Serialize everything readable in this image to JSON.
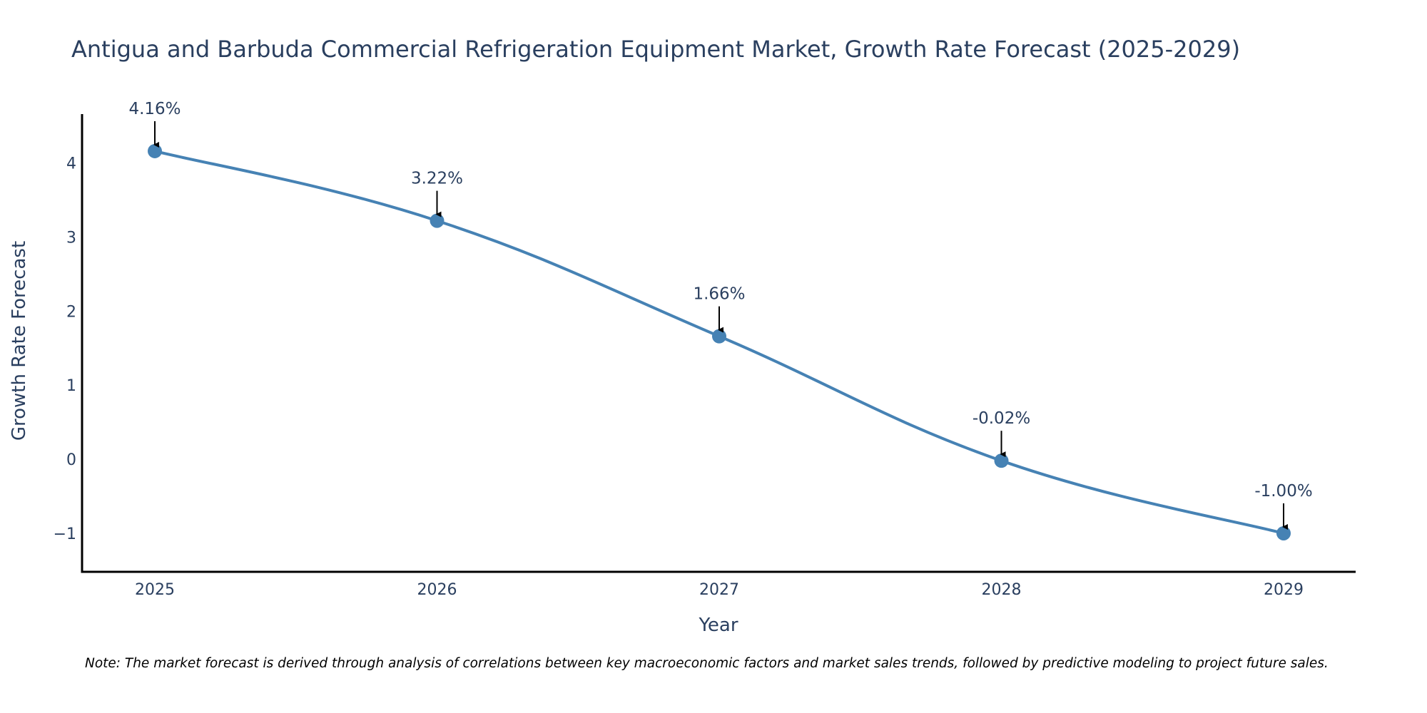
{
  "chart_data": {
    "type": "line",
    "title": "Antigua and Barbuda Commercial Refrigeration Equipment Market, Growth Rate Forecast (2025-2029)",
    "xlabel": "Year",
    "ylabel": "Growth Rate Forecast",
    "categories": [
      "2025",
      "2026",
      "2027",
      "2028",
      "2029"
    ],
    "series": [
      {
        "name": "Growth Rate Forecast",
        "values": [
          4.16,
          3.22,
          1.66,
          -0.02,
          -1.0
        ]
      }
    ],
    "data_labels": [
      "4.16%",
      "3.22%",
      "1.66%",
      "-0.02%",
      "-1.00%"
    ],
    "y_ticks": [
      -1,
      0,
      1,
      2,
      3,
      4
    ],
    "y_tick_labels": [
      "−1",
      "0",
      "1",
      "2",
      "3",
      "4"
    ],
    "ylim": [
      -1.52,
      4.66
    ],
    "line_color": "#4682b4",
    "marker_color": "#4682b4",
    "arrow_color": "#000000",
    "text_color": "#2a3f5f",
    "grid": false
  },
  "note": "Note: The market forecast is derived through analysis of correlations between key macroeconomic factors and market sales trends, followed by predictive modeling to project future sales."
}
